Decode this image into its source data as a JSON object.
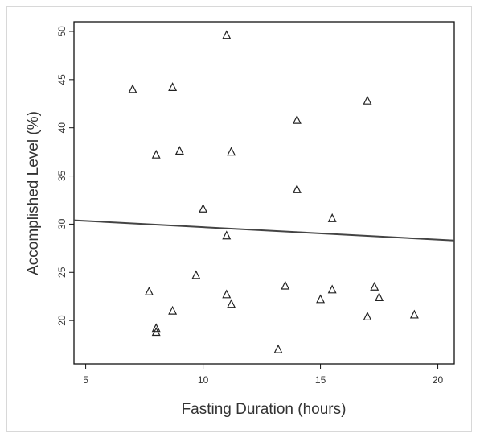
{
  "chart_data": {
    "type": "scatter",
    "title": "",
    "xlabel": "Fasting Duration (hours)",
    "ylabel": "Accomplished Level (%)",
    "xlim": [
      4.5,
      20.7
    ],
    "ylim": [
      15.5,
      51.0
    ],
    "xticks": [
      5,
      10,
      15,
      20
    ],
    "yticks": [
      20,
      25,
      30,
      35,
      40,
      45,
      50
    ],
    "grid": false,
    "legend": "none",
    "marker": "triangle",
    "colors": {
      "marker": "#222222",
      "line": "#444444",
      "axis": "#111111"
    },
    "series": [
      {
        "points": [
          [
            11.0,
            49.6
          ],
          [
            7.0,
            44.0
          ],
          [
            8.7,
            44.2
          ],
          [
            17.0,
            42.8
          ],
          [
            14.0,
            40.8
          ],
          [
            8.0,
            37.2
          ],
          [
            9.0,
            37.6
          ],
          [
            11.2,
            37.5
          ],
          [
            14.0,
            33.6
          ],
          [
            10.0,
            31.6
          ],
          [
            15.5,
            30.6
          ],
          [
            11.0,
            28.8
          ],
          [
            9.7,
            24.7
          ],
          [
            7.7,
            23.0
          ],
          [
            11.0,
            22.7
          ],
          [
            11.2,
            21.7
          ],
          [
            13.5,
            23.6
          ],
          [
            15.0,
            22.2
          ],
          [
            15.5,
            23.2
          ],
          [
            17.3,
            23.5
          ],
          [
            17.5,
            22.4
          ],
          [
            17.0,
            20.4
          ],
          [
            19.0,
            20.6
          ],
          [
            8.7,
            21.0
          ],
          [
            8.0,
            19.2
          ],
          [
            8.0,
            18.8
          ],
          [
            13.2,
            17.0
          ]
        ]
      }
    ],
    "trendline": {
      "x": [
        4.5,
        20.7
      ],
      "y": [
        30.4,
        28.3
      ]
    }
  }
}
